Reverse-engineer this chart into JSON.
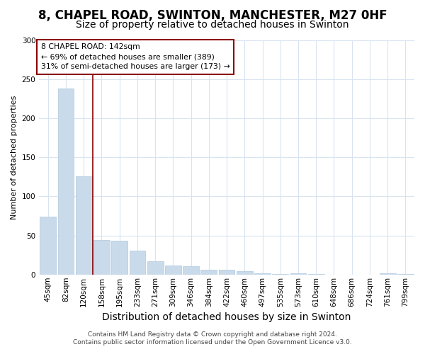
{
  "title1": "8, CHAPEL ROAD, SWINTON, MANCHESTER, M27 0HF",
  "title2": "Size of property relative to detached houses in Swinton",
  "xlabel": "Distribution of detached houses by size in Swinton",
  "ylabel": "Number of detached properties",
  "categories": [
    "45sqm",
    "82sqm",
    "120sqm",
    "158sqm",
    "195sqm",
    "233sqm",
    "271sqm",
    "309sqm",
    "346sqm",
    "384sqm",
    "422sqm",
    "460sqm",
    "497sqm",
    "535sqm",
    "573sqm",
    "610sqm",
    "648sqm",
    "686sqm",
    "724sqm",
    "761sqm",
    "799sqm"
  ],
  "values": [
    74,
    238,
    126,
    44,
    43,
    31,
    17,
    12,
    11,
    6,
    6,
    4,
    2,
    1,
    2,
    1,
    0,
    0,
    0,
    2,
    1
  ],
  "bar_color": "#c9daea",
  "bar_edgecolor": "#b0c8de",
  "marker_idx": 2,
  "marker_color": "#8b0000",
  "annotation_title": "8 CHAPEL ROAD: 142sqm",
  "annotation_line1": "← 69% of detached houses are smaller (389)",
  "annotation_line2": "31% of semi-detached houses are larger (173) →",
  "annotation_box_facecolor": "#ffffff",
  "annotation_box_edgecolor": "#8b0000",
  "footer1": "Contains HM Land Registry data © Crown copyright and database right 2024.",
  "footer2": "Contains public sector information licensed under the Open Government Licence v3.0.",
  "background_color": "#ffffff",
  "plot_background": "#ffffff",
  "ylim": [
    0,
    300
  ],
  "yticks": [
    0,
    50,
    100,
    150,
    200,
    250,
    300
  ],
  "grid_color": "#d8e4f0",
  "title1_fontsize": 12,
  "title2_fontsize": 10,
  "xlabel_fontsize": 10,
  "ylabel_fontsize": 8,
  "tick_fontsize": 7.5,
  "footer_fontsize": 6.5
}
